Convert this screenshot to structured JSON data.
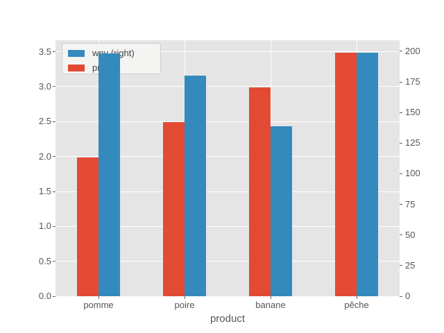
{
  "chart_data": {
    "type": "bar",
    "title": "",
    "xlabel": "product",
    "categories": [
      "pomme",
      "poire",
      "banane",
      "pêche"
    ],
    "series": [
      {
        "name": "prix",
        "axis": "left",
        "color": "#E24A33",
        "values": [
          1.99,
          2.49,
          2.99,
          3.49
        ]
      },
      {
        "name": "wnv (right)",
        "axis": "right",
        "color": "#348ABD",
        "values": [
          198,
          180,
          139,
          199
        ]
      }
    ],
    "left_axis": {
      "ticks": [
        "0.0",
        "0.5",
        "1.0",
        "1.5",
        "2.0",
        "2.5",
        "3.0",
        "3.5"
      ],
      "min": 0,
      "max": 3.6645
    },
    "right_axis": {
      "ticks": [
        "0",
        "25",
        "50",
        "75",
        "100",
        "125",
        "150",
        "175",
        "200"
      ],
      "min": 0,
      "max": 208.95
    },
    "legend": {
      "position": "upper left",
      "entries": [
        {
          "label": "wnv (right)",
          "color": "#348ABD"
        },
        {
          "label": "prix",
          "color": "#E24A33"
        }
      ]
    },
    "grid": true,
    "style": {
      "fig_bg": "#FFFFFF",
      "plot_bg": "#E5E5E5",
      "grid_color": "#FFFFFF",
      "text_color": "#555555"
    }
  }
}
